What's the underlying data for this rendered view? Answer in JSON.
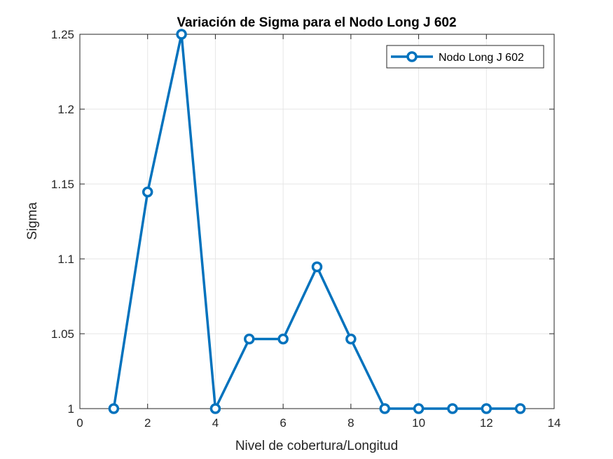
{
  "chart_data": {
    "type": "line",
    "title": "Variación de Sigma para el Nodo Long J 602",
    "xlabel": "Nivel de cobertura/Longitud",
    "ylabel": "Sigma",
    "xlim": [
      0,
      14
    ],
    "ylim": [
      1,
      1.25
    ],
    "xticks": [
      0,
      2,
      4,
      6,
      8,
      10,
      12,
      14
    ],
    "yticks": [
      1,
      1.05,
      1.1,
      1.15,
      1.2,
      1.25
    ],
    "xtick_labels": [
      "0",
      "2",
      "4",
      "6",
      "8",
      "10",
      "12",
      "14"
    ],
    "ytick_labels": [
      "1",
      "1.05",
      "1.1",
      "1.15",
      "1.2",
      "1.25"
    ],
    "grid": true,
    "legend_position": "top-right",
    "series": [
      {
        "name": "Nodo Long J 602",
        "color": "#0072BD",
        "marker": "circle",
        "x": [
          1,
          2,
          3,
          4,
          5,
          6,
          7,
          8,
          9,
          10,
          11,
          12,
          13
        ],
        "y": [
          1.0,
          1.1447,
          1.25,
          1.0,
          1.0465,
          1.0465,
          1.0947,
          1.0465,
          1.0,
          1.0,
          1.0,
          1.0,
          1.0
        ]
      }
    ]
  }
}
